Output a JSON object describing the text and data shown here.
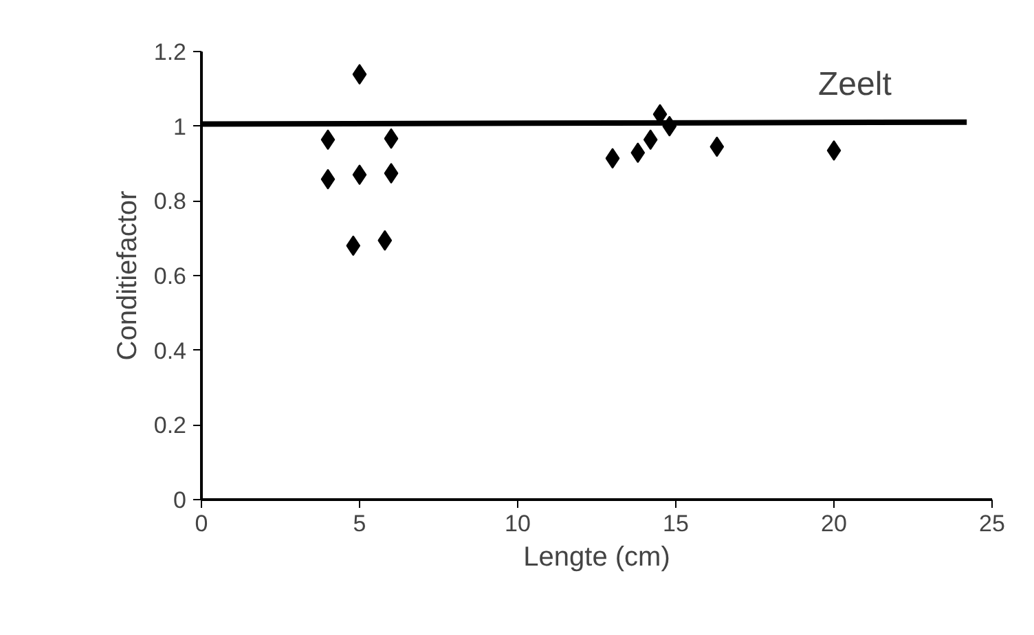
{
  "chart_data": {
    "type": "scatter",
    "xlabel": "Lengte (cm)",
    "ylabel": "Conditiefactor",
    "annotations": [
      "Zeelt"
    ],
    "xlim": [
      0,
      25
    ],
    "ylim": [
      0,
      1.2
    ],
    "xticks": [
      0,
      5,
      10,
      15,
      20,
      25
    ],
    "yticks": [
      0,
      0.2,
      0.4,
      0.6,
      0.8,
      1,
      1.2
    ],
    "grid": false,
    "marker": "diamond",
    "series": [
      {
        "color": "#000000",
        "x": [
          4,
          4,
          5,
          5,
          4.8,
          6,
          6,
          5.8,
          13,
          13.8,
          14.2,
          14.5,
          14.8,
          16.3,
          20
        ],
        "values": [
          0.964,
          0.858,
          1.139,
          0.87,
          0.68,
          0.967,
          0.874,
          0.694,
          0.914,
          0.929,
          0.964,
          1.032,
          1.0,
          0.945,
          0.935
        ]
      },
      {
        "type": "line",
        "marker": "none",
        "color": "#000000",
        "x": [
          0,
          24.2
        ],
        "values": [
          1.006,
          1.011
        ]
      }
    ]
  }
}
